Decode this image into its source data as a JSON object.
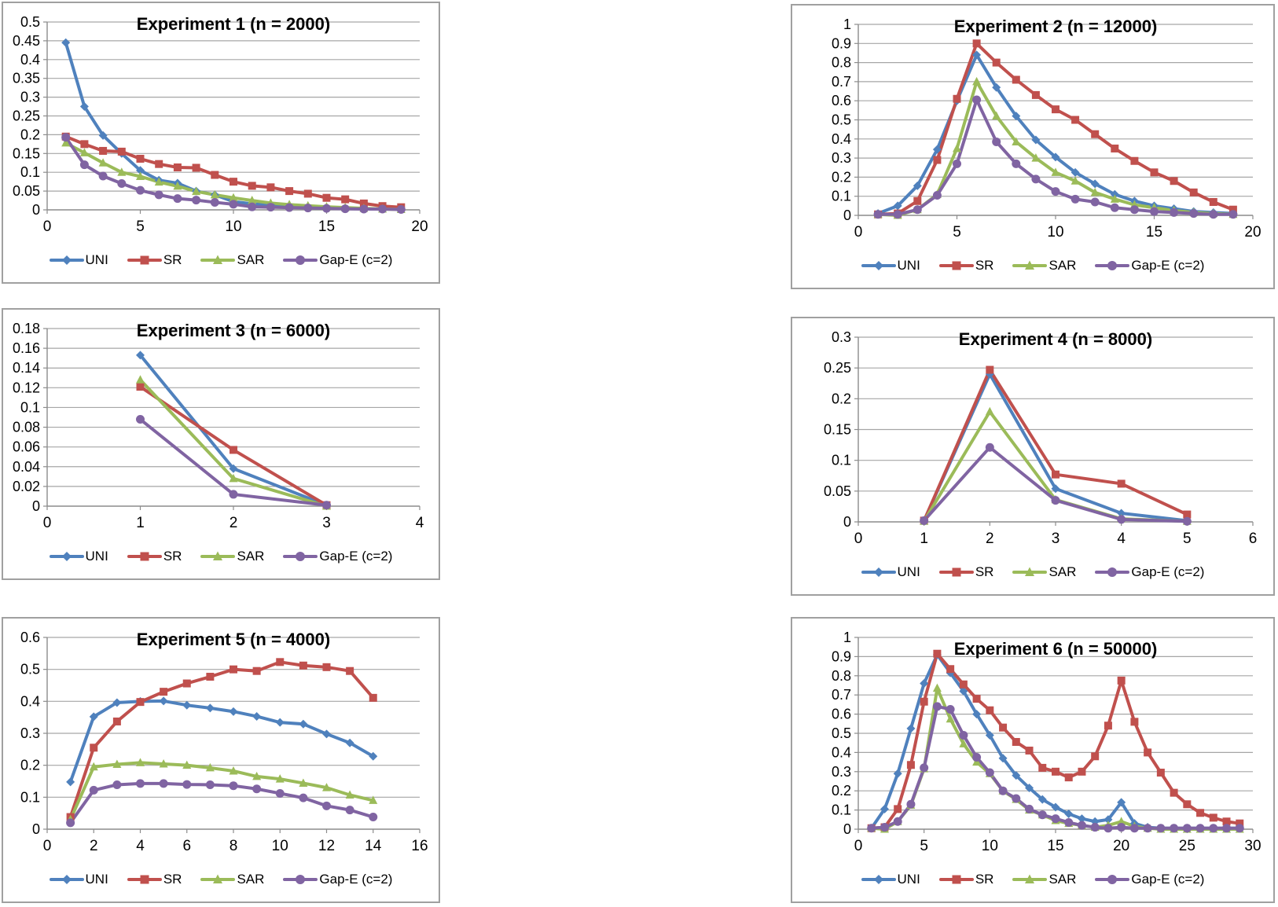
{
  "page": {
    "background": "#ffffff"
  },
  "palette": {
    "grid": "#a6a6a6",
    "axis": "#8c8c8c",
    "panel_border": "#a0a0a0",
    "text": "#000000"
  },
  "chart_data": [
    {
      "type": "line",
      "title": "Experiment 1 (n = 2000)",
      "xlabel": "",
      "ylabel": "",
      "xlim": [
        0,
        20
      ],
      "xtick_step": 5,
      "ylim": [
        0,
        0.5
      ],
      "ytick_step": 0.05,
      "grid": "horizontal",
      "legend_position": "bottom",
      "x": [
        1,
        2,
        3,
        4,
        5,
        6,
        7,
        8,
        9,
        10,
        11,
        12,
        13,
        14,
        15,
        16,
        17,
        18,
        19
      ],
      "series": [
        {
          "name": "UNI",
          "color": "#4F81BD",
          "marker": "diamond",
          "values": [
            0.445,
            0.275,
            0.198,
            0.15,
            0.105,
            0.079,
            0.071,
            0.05,
            0.04,
            0.022,
            0.016,
            0.013,
            0.01,
            0.008,
            0.006,
            0.004,
            0.003,
            0.002,
            0.002
          ]
        },
        {
          "name": "SR",
          "color": "#C0504D",
          "marker": "square",
          "values": [
            0.195,
            0.175,
            0.157,
            0.155,
            0.136,
            0.122,
            0.113,
            0.112,
            0.093,
            0.075,
            0.064,
            0.06,
            0.05,
            0.043,
            0.032,
            0.028,
            0.017,
            0.01,
            0.007
          ]
        },
        {
          "name": "SAR",
          "color": "#9BBB59",
          "marker": "triangle",
          "values": [
            0.178,
            0.152,
            0.125,
            0.1,
            0.089,
            0.074,
            0.063,
            0.049,
            0.04,
            0.032,
            0.025,
            0.018,
            0.014,
            0.011,
            0.008,
            0.006,
            0.004,
            0.002,
            0.001
          ]
        },
        {
          "name": "Gap-E (c=2)",
          "color": "#8064A2",
          "marker": "circle",
          "values": [
            0.193,
            0.12,
            0.09,
            0.07,
            0.052,
            0.04,
            0.03,
            0.026,
            0.02,
            0.015,
            0.008,
            0.007,
            0.006,
            0.005,
            0.004,
            0.003,
            0.002,
            0.002,
            0.001
          ]
        }
      ]
    },
    {
      "type": "line",
      "title": "Experiment 2 (n = 12000)",
      "xlabel": "",
      "ylabel": "",
      "xlim": [
        0,
        20
      ],
      "xtick_step": 5,
      "ylim": [
        0,
        1
      ],
      "ytick_step": 0.1,
      "grid": "horizontal",
      "legend_position": "bottom",
      "x": [
        1,
        2,
        3,
        4,
        5,
        6,
        7,
        8,
        9,
        10,
        11,
        12,
        13,
        14,
        15,
        16,
        17,
        18,
        19
      ],
      "series": [
        {
          "name": "UNI",
          "color": "#4F81BD",
          "marker": "diamond",
          "values": [
            0.01,
            0.05,
            0.155,
            0.345,
            0.6,
            0.84,
            0.67,
            0.52,
            0.395,
            0.305,
            0.225,
            0.165,
            0.11,
            0.075,
            0.05,
            0.035,
            0.02,
            0.015,
            0.01
          ]
        },
        {
          "name": "SR",
          "color": "#C0504D",
          "marker": "square",
          "values": [
            0.005,
            0.01,
            0.075,
            0.29,
            0.61,
            0.9,
            0.8,
            0.71,
            0.63,
            0.555,
            0.5,
            0.425,
            0.35,
            0.285,
            0.225,
            0.18,
            0.12,
            0.07,
            0.03
          ]
        },
        {
          "name": "SAR",
          "color": "#9BBB59",
          "marker": "triangle",
          "values": [
            0.005,
            0.0,
            0.03,
            0.11,
            0.35,
            0.7,
            0.52,
            0.385,
            0.3,
            0.225,
            0.18,
            0.12,
            0.085,
            0.055,
            0.04,
            0.025,
            0.015,
            0.01,
            0.005
          ]
        },
        {
          "name": "Gap-E (c=2)",
          "color": "#8064A2",
          "marker": "circle",
          "values": [
            0.005,
            0.005,
            0.03,
            0.105,
            0.27,
            0.605,
            0.385,
            0.27,
            0.19,
            0.125,
            0.085,
            0.07,
            0.04,
            0.03,
            0.02,
            0.015,
            0.01,
            0.005,
            0.005
          ]
        }
      ]
    },
    {
      "type": "line",
      "title": "Experiment 3 (n = 6000)",
      "xlabel": "",
      "ylabel": "",
      "xlim": [
        0,
        4
      ],
      "xtick_step": 1,
      "ylim": [
        0,
        0.18
      ],
      "ytick_step": 0.02,
      "grid": "horizontal",
      "legend_position": "bottom",
      "x": [
        1,
        2,
        3
      ],
      "series": [
        {
          "name": "UNI",
          "color": "#4F81BD",
          "marker": "diamond",
          "values": [
            0.153,
            0.038,
            0.001
          ]
        },
        {
          "name": "SR",
          "color": "#C0504D",
          "marker": "square",
          "values": [
            0.121,
            0.057,
            0.001
          ]
        },
        {
          "name": "SAR",
          "color": "#9BBB59",
          "marker": "triangle",
          "values": [
            0.128,
            0.028,
            0.0
          ]
        },
        {
          "name": "Gap-E (c=2)",
          "color": "#8064A2",
          "marker": "circle",
          "values": [
            0.088,
            0.012,
            0.001
          ]
        }
      ]
    },
    {
      "type": "line",
      "title": "Experiment 4 (n = 8000)",
      "xlabel": "",
      "ylabel": "",
      "xlim": [
        0,
        6
      ],
      "xtick_step": 1,
      "ylim": [
        0,
        0.3
      ],
      "ytick_step": 0.05,
      "grid": "horizontal",
      "legend_position": "bottom",
      "x": [
        1,
        2,
        3,
        4,
        5
      ],
      "series": [
        {
          "name": "UNI",
          "color": "#4F81BD",
          "marker": "diamond",
          "values": [
            0.002,
            0.24,
            0.054,
            0.014,
            0.002
          ]
        },
        {
          "name": "SR",
          "color": "#C0504D",
          "marker": "square",
          "values": [
            0.002,
            0.247,
            0.077,
            0.062,
            0.012
          ]
        },
        {
          "name": "SAR",
          "color": "#9BBB59",
          "marker": "triangle",
          "values": [
            0.001,
            0.179,
            0.036,
            0.005,
            0.001
          ]
        },
        {
          "name": "Gap-E (c=2)",
          "color": "#8064A2",
          "marker": "circle",
          "values": [
            0.002,
            0.121,
            0.035,
            0.004,
            0.001
          ]
        }
      ]
    },
    {
      "type": "line",
      "title": "Experiment 5 (n = 4000)",
      "xlabel": "",
      "ylabel": "",
      "xlim": [
        0,
        16
      ],
      "xtick_step": 2,
      "ylim": [
        0,
        0.6
      ],
      "ytick_step": 0.1,
      "grid": "horizontal",
      "legend_position": "bottom",
      "x": [
        1,
        2,
        3,
        4,
        5,
        6,
        7,
        8,
        9,
        10,
        11,
        12,
        13,
        14
      ],
      "series": [
        {
          "name": "UNI",
          "color": "#4F81BD",
          "marker": "diamond",
          "values": [
            0.148,
            0.352,
            0.396,
            0.4,
            0.401,
            0.388,
            0.379,
            0.368,
            0.353,
            0.334,
            0.329,
            0.298,
            0.27,
            0.228
          ]
        },
        {
          "name": "SR",
          "color": "#C0504D",
          "marker": "square",
          "values": [
            0.038,
            0.255,
            0.337,
            0.398,
            0.43,
            0.456,
            0.477,
            0.5,
            0.495,
            0.523,
            0.512,
            0.507,
            0.495,
            0.411
          ]
        },
        {
          "name": "SAR",
          "color": "#9BBB59",
          "marker": "triangle",
          "values": [
            0.03,
            0.195,
            0.203,
            0.208,
            0.204,
            0.2,
            0.192,
            0.182,
            0.165,
            0.157,
            0.144,
            0.13,
            0.107,
            0.09
          ]
        },
        {
          "name": "Gap-E (c=2)",
          "color": "#8064A2",
          "marker": "circle",
          "values": [
            0.02,
            0.122,
            0.139,
            0.143,
            0.143,
            0.14,
            0.139,
            0.136,
            0.126,
            0.112,
            0.098,
            0.073,
            0.06,
            0.038
          ]
        }
      ]
    },
    {
      "type": "line",
      "title": "Experiment 6 (n = 50000)",
      "xlabel": "",
      "ylabel": "",
      "xlim": [
        0,
        30
      ],
      "xtick_step": 5,
      "ylim": [
        0,
        1
      ],
      "ytick_step": 0.1,
      "grid": "horizontal",
      "legend_position": "bottom",
      "x": [
        1,
        2,
        3,
        4,
        5,
        6,
        7,
        8,
        9,
        10,
        11,
        12,
        13,
        14,
        15,
        16,
        17,
        18,
        19,
        20,
        21,
        22,
        23,
        24,
        25,
        26,
        27,
        28,
        29
      ],
      "series": [
        {
          "name": "UNI",
          "color": "#4F81BD",
          "marker": "diamond",
          "values": [
            0.005,
            0.105,
            0.29,
            0.525,
            0.76,
            0.91,
            0.815,
            0.72,
            0.6,
            0.49,
            0.37,
            0.28,
            0.215,
            0.155,
            0.115,
            0.08,
            0.055,
            0.04,
            0.05,
            0.14,
            0.03,
            0.01,
            0.005,
            0.005,
            0.005,
            0.005,
            0.005,
            0.005,
            0.005
          ]
        },
        {
          "name": "SR",
          "color": "#C0504D",
          "marker": "square",
          "values": [
            0.005,
            0.01,
            0.105,
            0.335,
            0.665,
            0.915,
            0.835,
            0.755,
            0.68,
            0.62,
            0.53,
            0.455,
            0.41,
            0.32,
            0.3,
            0.27,
            0.3,
            0.38,
            0.54,
            0.775,
            0.56,
            0.4,
            0.295,
            0.19,
            0.13,
            0.085,
            0.06,
            0.04,
            0.03
          ]
        },
        {
          "name": "SAR",
          "color": "#9BBB59",
          "marker": "triangle",
          "values": [
            0.005,
            0.0,
            0.04,
            0.125,
            0.315,
            0.735,
            0.575,
            0.445,
            0.35,
            0.29,
            0.2,
            0.155,
            0.1,
            0.075,
            0.045,
            0.03,
            0.02,
            0.01,
            0.02,
            0.04,
            0.015,
            0.005,
            0.0,
            0.0,
            0.0,
            0.0,
            0.0,
            0.0,
            0.0
          ]
        },
        {
          "name": "Gap-E (c=2)",
          "color": "#8064A2",
          "marker": "circle",
          "values": [
            0.005,
            0.01,
            0.04,
            0.13,
            0.32,
            0.64,
            0.625,
            0.49,
            0.375,
            0.295,
            0.2,
            0.16,
            0.105,
            0.075,
            0.055,
            0.035,
            0.02,
            0.01,
            0.005,
            0.01,
            0.005,
            0.005,
            0.005,
            0.005,
            0.005,
            0.005,
            0.005,
            0.005,
            0.005
          ]
        }
      ]
    }
  ]
}
